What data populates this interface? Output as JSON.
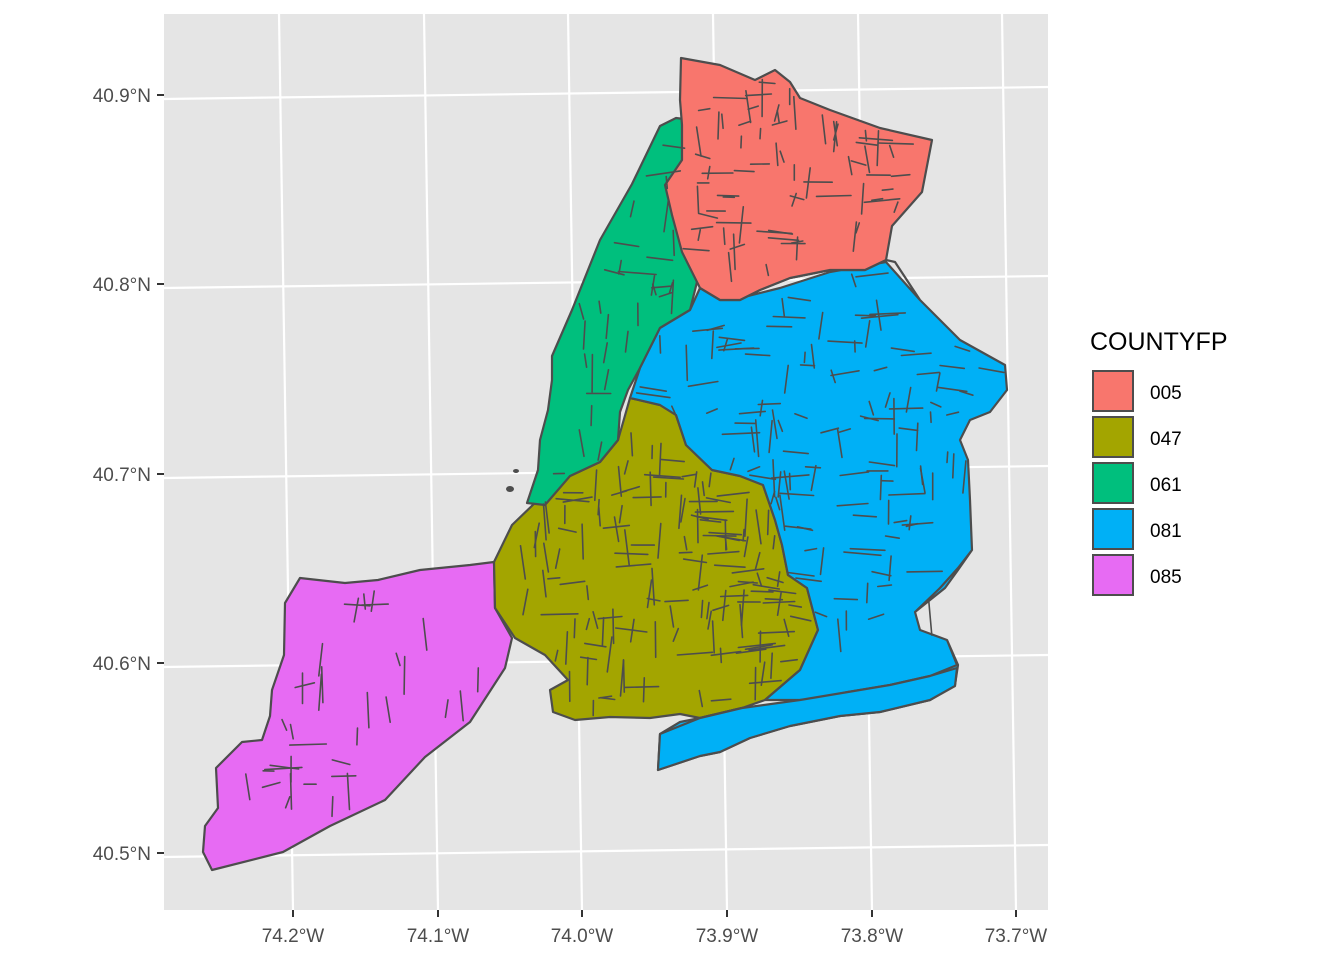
{
  "chart_data": {
    "type": "map",
    "projection": "geographic (slightly curved graticule)",
    "grid": true,
    "panel_background": "#e5e5e5",
    "border_color": "#4d4d4d",
    "x_axis": {
      "ticks": [
        {
          "value": -74.2,
          "label": "74.2°W"
        },
        {
          "value": -74.1,
          "label": "74.1°W"
        },
        {
          "value": -74.0,
          "label": "74.0°W"
        },
        {
          "value": -73.9,
          "label": "73.9°W"
        },
        {
          "value": -73.8,
          "label": "73.8°W"
        },
        {
          "value": -73.7,
          "label": "73.7°W"
        }
      ]
    },
    "y_axis": {
      "ticks": [
        {
          "value": 40.9,
          "label": "40.9°N"
        },
        {
          "value": 40.8,
          "label": "40.8°N"
        },
        {
          "value": 40.7,
          "label": "40.7°N"
        },
        {
          "value": 40.6,
          "label": "40.6°N"
        },
        {
          "value": 40.5,
          "label": "40.5°N"
        }
      ]
    },
    "legend": {
      "title": "COUNTYFP",
      "position": "right",
      "entries": [
        {
          "label": "005",
          "color": "#F8766D"
        },
        {
          "label": "047",
          "color": "#A3A500"
        },
        {
          "label": "061",
          "color": "#00BF7D"
        },
        {
          "label": "081",
          "color": "#00B0F6"
        },
        {
          "label": "085",
          "color": "#E76BF3"
        }
      ]
    },
    "regions": [
      {
        "county": "005",
        "color": "#F8766D"
      },
      {
        "county": "047",
        "color": "#A3A500"
      },
      {
        "county": "061",
        "color": "#00BF7D"
      },
      {
        "county": "081",
        "color": "#00B0F6"
      },
      {
        "county": "085",
        "color": "#E76BF3"
      }
    ]
  }
}
